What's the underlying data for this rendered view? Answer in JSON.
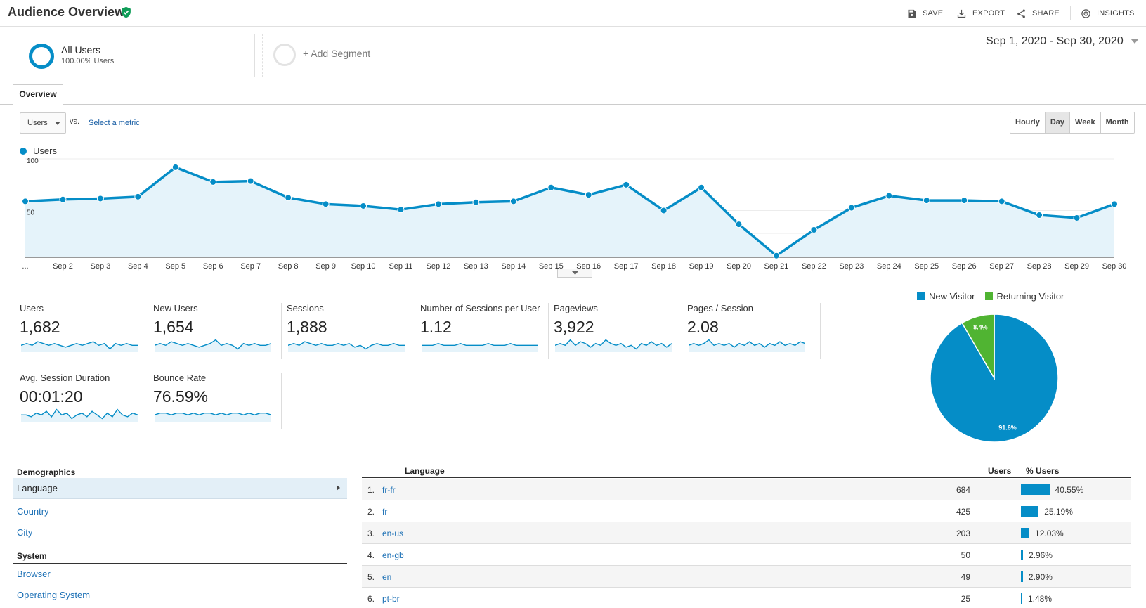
{
  "header": {
    "title": "Audience Overview",
    "actions": {
      "save": "SAVE",
      "export": "EXPORT",
      "share": "SHARE",
      "insights": "INSIGHTS"
    }
  },
  "segments": {
    "all_users": {
      "title": "All Users",
      "subtitle": "100.00% Users"
    },
    "add_segment": "+ Add Segment"
  },
  "date_range": "Sep 1, 2020 - Sep 30, 2020",
  "tabs": {
    "overview": "Overview"
  },
  "metric_picker": {
    "selected": "Users",
    "vs": "vs.",
    "select_metric": "Select a metric"
  },
  "periods": [
    {
      "label": "Hourly",
      "active": false
    },
    {
      "label": "Day",
      "active": true
    },
    {
      "label": "Week",
      "active": false
    },
    {
      "label": "Month",
      "active": false
    }
  ],
  "colors": {
    "accent": "#058dc7",
    "returning": "#50b432",
    "link": "#1a6fb5"
  },
  "chart_data": {
    "type": "line",
    "legend": "Users",
    "y_ticks": [
      "100",
      "50"
    ],
    "ylim": [
      0,
      100
    ],
    "x_labels": [
      "...",
      "Sep 2",
      "Sep 3",
      "Sep 4",
      "Sep 5",
      "Sep 6",
      "Sep 7",
      "Sep 8",
      "Sep 9",
      "Sep 10",
      "Sep 11",
      "Sep 12",
      "Sep 13",
      "Sep 14",
      "Sep 15",
      "Sep 16",
      "Sep 17",
      "Sep 18",
      "Sep 19",
      "Sep 20",
      "Sep 21",
      "Sep 22",
      "Sep 23",
      "Sep 24",
      "Sep 25",
      "Sep 26",
      "Sep 27",
      "Sep 28",
      "Sep 29",
      "Sep 30"
    ],
    "series": [
      {
        "name": "Users",
        "values": [
          60,
          62,
          63,
          65,
          97,
          81,
          82,
          64,
          57,
          55,
          51,
          57,
          59,
          60,
          75,
          67,
          78,
          50,
          75,
          35,
          1,
          29,
          53,
          66,
          61,
          61,
          60,
          45,
          42,
          57
        ]
      }
    ]
  },
  "scorecards": [
    {
      "label": "Users",
      "value": "1,682",
      "spark": [
        5,
        6,
        5,
        7,
        6,
        5,
        6,
        5,
        4,
        5,
        6,
        5,
        6,
        7,
        5,
        6,
        3,
        6,
        5,
        6,
        5,
        5
      ]
    },
    {
      "label": "New Users",
      "value": "1,654",
      "spark": [
        5,
        6,
        5,
        7,
        6,
        5,
        6,
        5,
        4,
        5,
        6,
        8,
        5,
        6,
        5,
        3,
        6,
        5,
        6,
        5,
        5,
        6
      ]
    },
    {
      "label": "Sessions",
      "value": "1,888",
      "spark": [
        5,
        6,
        5,
        7,
        6,
        5,
        6,
        5,
        5,
        6,
        5,
        6,
        4,
        5,
        3,
        5,
        6,
        5,
        5,
        6,
        5,
        5
      ]
    },
    {
      "label": "Number of Sessions per User",
      "value": "1.12",
      "spark": [
        5,
        5,
        5,
        6,
        5,
        5,
        5,
        6,
        5,
        5,
        5,
        5,
        6,
        5,
        5,
        5,
        6,
        5,
        5,
        5,
        5,
        5
      ]
    },
    {
      "label": "Pageviews",
      "value": "3,922",
      "spark": [
        5,
        6,
        5,
        8,
        5,
        7,
        6,
        4,
        6,
        5,
        8,
        6,
        5,
        6,
        4,
        5,
        3,
        6,
        5,
        7,
        5,
        6,
        4,
        6
      ]
    },
    {
      "label": "Pages / Session",
      "value": "2.08",
      "spark": [
        5,
        6,
        5,
        6,
        8,
        5,
        6,
        5,
        6,
        4,
        6,
        5,
        7,
        5,
        6,
        4,
        6,
        5,
        7,
        5,
        6,
        5,
        7,
        6
      ]
    },
    {
      "label": "Avg. Session Duration",
      "value": "00:01:20",
      "spark": [
        5,
        5,
        4,
        6,
        5,
        7,
        4,
        8,
        5,
        6,
        3,
        5,
        6,
        4,
        7,
        5,
        3,
        6,
        4,
        8,
        5,
        4,
        6,
        5
      ]
    },
    {
      "label": "Bounce Rate",
      "value": "76.59%",
      "spark": [
        5,
        6,
        6,
        5,
        6,
        6,
        5,
        6,
        5,
        6,
        6,
        5,
        6,
        5,
        6,
        6,
        5,
        6,
        5,
        6,
        6,
        5
      ]
    }
  ],
  "pie": {
    "legend": [
      {
        "label": "New Visitor",
        "color": "#058dc7"
      },
      {
        "label": "Returning Visitor",
        "color": "#50b432"
      }
    ],
    "slices": [
      {
        "label": "New Visitor",
        "value": 91.6,
        "text": "91.6%"
      },
      {
        "label": "Returning Visitor",
        "value": 8.4,
        "text": "8.4%"
      }
    ]
  },
  "demographics": {
    "heading": "Demographics",
    "items": [
      "Language",
      "Country",
      "City"
    ],
    "system_heading": "System",
    "system_items": [
      "Browser",
      "Operating System"
    ]
  },
  "language_table": {
    "headers": {
      "language": "Language",
      "users": "Users",
      "pct_users": "% Users"
    },
    "rows": [
      {
        "num": "1.",
        "lang": "fr-fr",
        "users": "684",
        "pct": "40.55%",
        "frac": 0.4055
      },
      {
        "num": "2.",
        "lang": "fr",
        "users": "425",
        "pct": "25.19%",
        "frac": 0.2519
      },
      {
        "num": "3.",
        "lang": "en-us",
        "users": "203",
        "pct": "12.03%",
        "frac": 0.1203
      },
      {
        "num": "4.",
        "lang": "en-gb",
        "users": "50",
        "pct": "2.96%",
        "frac": 0.0296
      },
      {
        "num": "5.",
        "lang": "en",
        "users": "49",
        "pct": "2.90%",
        "frac": 0.029
      },
      {
        "num": "6.",
        "lang": "pt-br",
        "users": "25",
        "pct": "1.48%",
        "frac": 0.0148
      }
    ]
  }
}
